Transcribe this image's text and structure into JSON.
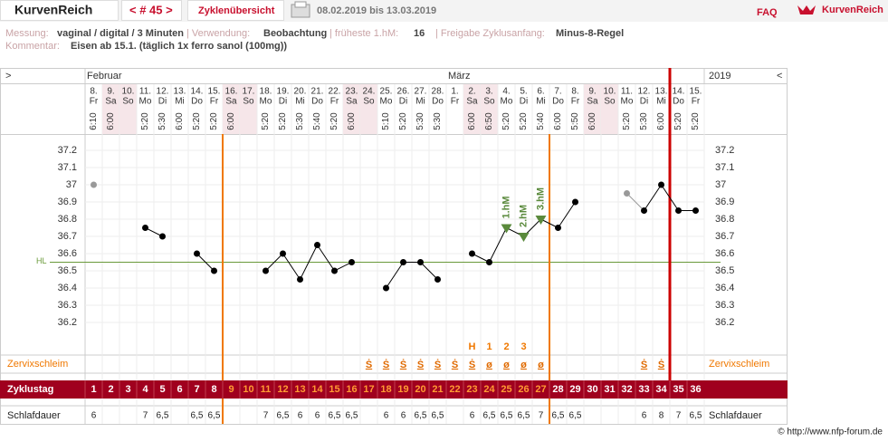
{
  "header": {
    "app_name": "KurvenReich",
    "cycle_nav": "< # 45 >",
    "overview": "Zyklenübersicht",
    "date_range": "08.02.2019 bis 13.03.2019",
    "faq": "FAQ",
    "logo": "KurvenReich"
  },
  "info": {
    "measurement_label": "Messung:",
    "measurement": "vaginal / digital / 3 Minuten",
    "usage_label": "| Verwendung:",
    "usage": "Beobachtung",
    "earliest_label": "| früheste 1.hM:",
    "earliest": "16",
    "release_label": "| Freigabe Zyklusanfang:",
    "release": "Minus-8-Regel",
    "comment_label": "Kommentar:",
    "comment": "Eisen ab 15.1. (täglich 1x ferro sanol (100mg))"
  },
  "chart_data": {
    "type": "line",
    "nav_left": ">",
    "nav_right": "<",
    "year": "2019",
    "month_row": [
      "Februar",
      null,
      null,
      null,
      null,
      null,
      null,
      null,
      null,
      null,
      null,
      null,
      null,
      null,
      null,
      null,
      null,
      null,
      null,
      null,
      null,
      "März",
      null,
      null,
      null,
      null,
      null,
      null,
      null,
      null,
      null,
      null,
      null,
      null,
      null,
      null
    ],
    "day_numbers": [
      "8.",
      "9.",
      "10.",
      "11.",
      "12.",
      "13.",
      "14.",
      "15.",
      "16.",
      "17.",
      "18.",
      "19.",
      "20.",
      "21.",
      "22.",
      "23.",
      "24.",
      "25.",
      "26.",
      "27.",
      "28.",
      "1.",
      "2.",
      "3.",
      "4.",
      "5.",
      "6.",
      "7.",
      "8.",
      "9.",
      "10.",
      "11.",
      "12.",
      "13.",
      "14.",
      "15."
    ],
    "weekdays": [
      "Fr",
      "Sa",
      "So",
      "Mo",
      "Di",
      "Mi",
      "Do",
      "Fr",
      "Sa",
      "So",
      "Mo",
      "Di",
      "Mi",
      "Do",
      "Fr",
      "Sa",
      "So",
      "Mo",
      "Di",
      "Mi",
      "Do",
      "Fr",
      "Sa",
      "So",
      "Mo",
      "Di",
      "Mi",
      "Do",
      "Fr",
      "Sa",
      "So",
      "Mo",
      "Di",
      "Mi",
      "Do",
      "Fr"
    ],
    "weekend": [
      false,
      true,
      true,
      false,
      false,
      false,
      false,
      false,
      true,
      true,
      false,
      false,
      false,
      false,
      false,
      true,
      true,
      false,
      false,
      false,
      false,
      false,
      true,
      true,
      false,
      false,
      false,
      false,
      false,
      true,
      true,
      false,
      false,
      false,
      false,
      false
    ],
    "weekend_color": "#f6e6e9",
    "times": [
      "6:10",
      "6:00",
      null,
      "5:20",
      "5:30",
      "6:00",
      "5:20",
      "5:20",
      "6:00",
      null,
      "5:20",
      "5:20",
      "5:30",
      "5:40",
      "5:20",
      "6:00",
      null,
      "5:10",
      "5:20",
      "5:30",
      "5:30",
      null,
      "6:00",
      "6:50",
      "5:20",
      "5:20",
      "5:40",
      "6:00",
      "5:50",
      "6:00",
      null,
      "5:20",
      "5:30",
      "6:00",
      "5:20",
      "5:20"
    ],
    "values": [
      37.0,
      null,
      null,
      36.75,
      36.7,
      null,
      36.6,
      36.5,
      null,
      null,
      36.5,
      36.6,
      36.45,
      36.65,
      36.5,
      36.55,
      null,
      36.4,
      36.55,
      36.55,
      36.45,
      null,
      36.6,
      36.55,
      36.75,
      36.7,
      36.8,
      36.75,
      36.9,
      null,
      null,
      36.95,
      36.85,
      37.0,
      36.85,
      36.85
    ],
    "point_colors": [
      "#999999",
      null,
      null,
      "#000000",
      "#000000",
      null,
      "#000000",
      "#000000",
      null,
      null,
      "#000000",
      "#000000",
      "#000000",
      "#000000",
      "#000000",
      "#000000",
      null,
      "#000000",
      "#000000",
      "#000000",
      "#000000",
      null,
      "#000000",
      "#000000",
      "#5a8a3c",
      "#5a8a3c",
      "#5a8a3c",
      "#000000",
      "#000000",
      null,
      null,
      "#999999",
      "#000000",
      "#000000",
      "#000000",
      "#000000"
    ],
    "markers": [
      "circle",
      null,
      null,
      "circle",
      "circle",
      null,
      "circle",
      "circle",
      null,
      null,
      "circle",
      "circle",
      "circle",
      "circle",
      "circle",
      "circle",
      null,
      "circle",
      "circle",
      "circle",
      "circle",
      null,
      "circle",
      "circle",
      "triangle",
      "triangle",
      "triangle",
      "circle",
      "circle",
      null,
      null,
      "circle",
      "circle",
      "circle",
      "circle",
      "circle"
    ],
    "point_labels": [
      null,
      null,
      null,
      null,
      null,
      null,
      null,
      null,
      null,
      null,
      null,
      null,
      null,
      null,
      null,
      null,
      null,
      null,
      null,
      null,
      null,
      null,
      null,
      null,
      "1.hM",
      "2.hM",
      "3.hM",
      null,
      null,
      null,
      null,
      null,
      null,
      null,
      null,
      null
    ],
    "ylim": [
      36.1,
      37.3
    ],
    "yticks": [
      36.2,
      36.3,
      36.4,
      36.5,
      36.6,
      36.7,
      36.8,
      36.9,
      37,
      37.1,
      37.2
    ],
    "grid": true,
    "coverline": 36.55,
    "coverline_label": "HL",
    "coverline_color": "#6a9a3a",
    "phase_lines": [
      {
        "after_day": 8,
        "color": "#f07800"
      },
      {
        "after_day": 27,
        "color": "#f07800"
      },
      {
        "after_day": 34,
        "color": "#cc0000"
      }
    ],
    "peak_row": [
      null,
      null,
      null,
      null,
      null,
      null,
      null,
      null,
      null,
      null,
      null,
      null,
      null,
      null,
      null,
      null,
      null,
      null,
      null,
      null,
      null,
      null,
      "H",
      "1",
      "2",
      "3",
      null,
      null,
      null,
      null,
      null,
      null,
      null,
      null,
      null,
      null
    ],
    "mucus_label": "Zervixschleim",
    "mucus": [
      null,
      null,
      null,
      null,
      null,
      null,
      null,
      null,
      null,
      null,
      null,
      null,
      null,
      null,
      null,
      null,
      "Ṡ",
      "Ṡ",
      "Ṡ",
      "Ṡ",
      "Ṡ",
      "Ṡ",
      "Ṡ",
      "ø",
      "ø",
      "ø",
      "ø",
      null,
      null,
      null,
      null,
      null,
      "Ṡ",
      "Ṡ",
      null,
      null
    ],
    "cycle_label": "Zyklustag",
    "categories": [
      1,
      2,
      3,
      4,
      5,
      6,
      7,
      8,
      9,
      10,
      11,
      12,
      13,
      14,
      15,
      16,
      17,
      18,
      19,
      20,
      21,
      22,
      23,
      24,
      25,
      26,
      27,
      28,
      29,
      30,
      31,
      32,
      33,
      34,
      35,
      36
    ],
    "sleep_label": "Schlafdauer",
    "sleep": [
      "6",
      null,
      null,
      "7",
      "6,5",
      null,
      "6,5",
      "6,5",
      null,
      null,
      "7",
      "6,5",
      "6",
      "6",
      "6,5",
      "6,5",
      null,
      "6",
      "6",
      "6,5",
      "6,5",
      null,
      "6",
      "6,5",
      "6,5",
      "6,5",
      "7",
      "6,5",
      "6,5",
      null,
      null,
      null,
      "6",
      "8",
      "7",
      "6,5"
    ]
  },
  "footer": "© http://www.nfp-forum.de"
}
